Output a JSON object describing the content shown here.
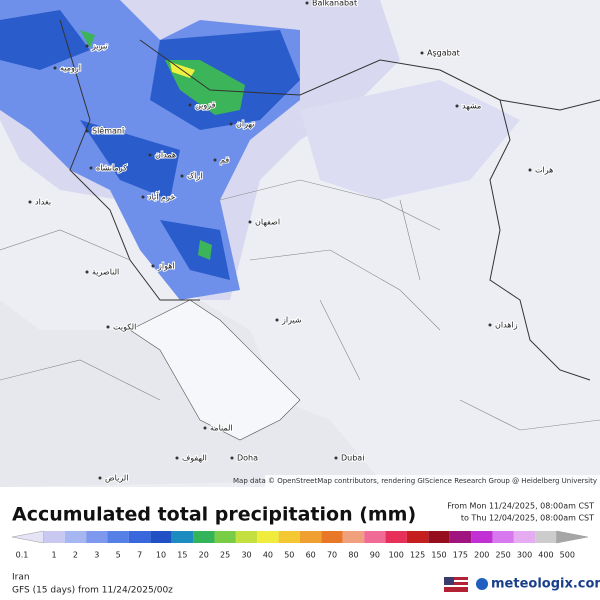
{
  "header": {
    "title": "Accumulated total precipitation (mm)",
    "from": "From Mon 11/24/2025, 08:00am CST",
    "to": "to Thu 12/04/2025, 08:00am CST"
  },
  "legend": {
    "values": [
      0.1,
      1,
      2,
      3,
      5,
      7,
      10,
      15,
      20,
      25,
      30,
      40,
      50,
      60,
      70,
      80,
      90,
      100,
      125,
      150,
      175,
      200,
      250,
      300,
      400,
      500
    ],
    "colors": [
      "#e4e4f6",
      "#c8c8f0",
      "#a6b6f0",
      "#7d98ec",
      "#5580e6",
      "#3868dc",
      "#2050c4",
      "#1c8cc0",
      "#34b45a",
      "#78cc46",
      "#c4e040",
      "#f0ec3c",
      "#f4c832",
      "#f0a030",
      "#e87828",
      "#f0a07c",
      "#f06c96",
      "#e6305a",
      "#c41e1e",
      "#960e1e",
      "#a01480",
      "#c030d2",
      "#d878ee",
      "#e6acf2",
      "#cccccc",
      "#a6a6a6"
    ]
  },
  "footer": {
    "region": "Iran",
    "model": "GFS (15 days) from 11/24/2025/00z",
    "brand": "meteologix.com"
  },
  "map": {
    "attribution": "Map data © OpenStreetMap contributors, rendering GIScience Research Group @ Heidelberg University",
    "cities": [
      "Balkanabat",
      "Aşgabat",
      "Slêmanî",
      "تبریز",
      "ارومیه",
      "قزوین",
      "تهران",
      "همدان",
      "کرمانشاه",
      "اراک",
      "قم",
      "خرم آباد",
      "اصفهان",
      "اهواز",
      "مشهد",
      "هرات",
      "شیراز",
      "زاهدان",
      "الكويت",
      "الناصرية",
      "بغداد",
      "الرياض",
      "Doha",
      "Dubai",
      "المنامة",
      "الهفوف"
    ]
  }
}
